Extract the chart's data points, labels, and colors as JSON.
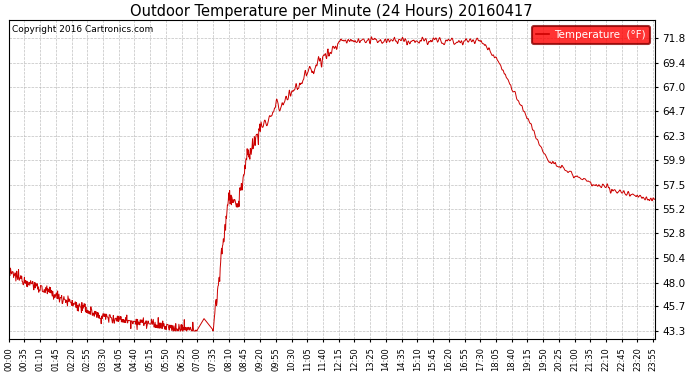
{
  "title": "Outdoor Temperature per Minute (24 Hours) 20160417",
  "copyright": "Copyright 2016 Cartronics.com",
  "legend_label": "Temperature  (°F)",
  "line_color": "#cc0000",
  "background_color": "#ffffff",
  "grid_color": "#b0b0b0",
  "yticks": [
    43.3,
    45.7,
    48.0,
    50.4,
    52.8,
    55.2,
    57.5,
    59.9,
    62.3,
    64.7,
    67.0,
    69.4,
    71.8
  ],
  "ylim": [
    42.5,
    73.5
  ],
  "total_minutes": 1440,
  "x_tick_interval": 35,
  "x_tick_labels": [
    "00:00",
    "00:35",
    "01:10",
    "01:45",
    "02:20",
    "02:55",
    "03:30",
    "04:05",
    "04:40",
    "05:15",
    "05:50",
    "06:25",
    "07:00",
    "07:35",
    "08:10",
    "08:45",
    "09:20",
    "09:55",
    "10:30",
    "11:05",
    "11:40",
    "12:15",
    "12:50",
    "13:25",
    "14:00",
    "14:35",
    "15:10",
    "15:45",
    "16:20",
    "16:55",
    "17:30",
    "18:05",
    "18:40",
    "19:15",
    "19:50",
    "20:25",
    "21:00",
    "21:35",
    "22:10",
    "22:45",
    "23:20",
    "23:55"
  ]
}
